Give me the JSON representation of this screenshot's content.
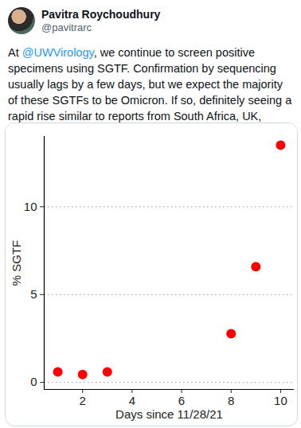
{
  "tweet": {
    "author": "Pavitra Roychoudhury",
    "handle": "@pavitrarc",
    "text": "At @UWVirology, we continue to screen positive specimens using SGTF. Confirmation by sequencing usually lags by a few days, but we expect the majority of these SGTFs to be Omicron. If so, definitely seeing a rapid rise similar to reports from South Africa, UK, Denmark, etc.",
    "mentions": [
      "@UWVirology"
    ]
  },
  "chart_data": {
    "type": "scatter",
    "x_label": "Days since 11/28/21",
    "y_label": "% SGTF",
    "x": [
      1,
      2,
      3,
      8,
      9,
      10
    ],
    "values": [
      0.6,
      0.45,
      0.6,
      2.77,
      6.58,
      13.5
    ],
    "color": "#ff0000",
    "marker": "circle",
    "xlim": [
      0.45,
      10.55
    ],
    "xticks": [
      2,
      4,
      6,
      8,
      10
    ],
    "ylim": [
      -0.4,
      14
    ],
    "yticks": [
      0,
      5,
      10
    ],
    "grid": true
  }
}
